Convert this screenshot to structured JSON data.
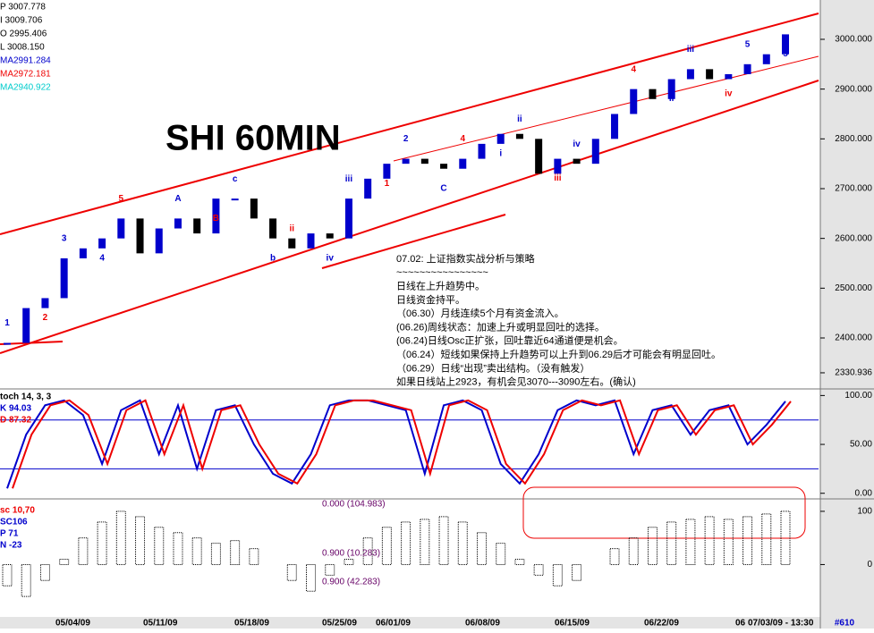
{
  "header": {
    "title": "SHI 60MIN",
    "legend": [
      "P 3007.778",
      "I 3009.706",
      "O 2995.406",
      "L 3008.150",
      "MA2991.284",
      "MA2972.181",
      "MA2940.922"
    ],
    "corner": "#610"
  },
  "price_panel": {
    "ylim": [
      2303,
      3079
    ],
    "yticks": [
      {
        "value": 3000,
        "label": "3000.000"
      },
      {
        "value": 2900,
        "label": "2900.000"
      },
      {
        "value": 2800,
        "label": "2800.000"
      },
      {
        "value": 2700,
        "label": "2700.000"
      },
      {
        "value": 2600,
        "label": "2600.000"
      },
      {
        "value": 2500,
        "label": "2500.000"
      },
      {
        "value": 2400,
        "label": "2400.000"
      },
      {
        "value": 2330,
        "label": "2330.936"
      }
    ],
    "closes": [
      2390,
      2460,
      2480,
      2560,
      2580,
      2600,
      2640,
      2570,
      2620,
      2640,
      2610,
      2680,
      2680,
      2640,
      2600,
      2580,
      2610,
      2600,
      2680,
      2720,
      2750,
      2760,
      2750,
      2740,
      2760,
      2790,
      2810,
      2800,
      2730,
      2760,
      2750,
      2800,
      2850,
      2900,
      2880,
      2920,
      2940,
      2920,
      2930,
      2950,
      2970,
      3010
    ],
    "waves": [
      "1",
      "2",
      "3",
      "4",
      "5",
      "3",
      "A",
      "B",
      "c",
      "b",
      "ii",
      "iv",
      "iii",
      "1",
      "2",
      "C",
      "4",
      "i",
      "ii",
      "iii",
      "iv",
      "3",
      "4",
      "ii",
      "iii",
      "iv",
      "5",
      "5"
    ]
  },
  "commentary": [
    "07.02: 上证指数实战分析与策略",
    "~~~~~~~~~~~~~~~~",
    "日线在上升趋势中。",
    "日线资金持平。",
    "（06.30）月线连续5个月有资金流入。",
    "(06.26)周线状态：加速上升或明显回吐的选择。",
    "(06.24)日线Osc正扩张，回吐靠近64通道便是机会。",
    "（06.24）短线如果保持上升趋势可以上升到06.29后才可能会有明显回吐。",
    "（06.29）日线“出现”卖出结构。（没有触发）",
    "如果日线站上2923，有机会见3070---3090左右。(确认)"
  ],
  "stoch_panel": {
    "ylim": [
      -3,
      104
    ],
    "yticks": [
      {
        "value": 100,
        "label": "100.00"
      },
      {
        "value": 50,
        "label": "50.00"
      },
      {
        "value": 0,
        "label": "0.00"
      }
    ],
    "legend": [
      "toch 14, 3, 3",
      "K  94.03",
      "D  87.32"
    ],
    "k": [
      5,
      60,
      90,
      95,
      80,
      30,
      85,
      95,
      40,
      90,
      25,
      85,
      90,
      50,
      20,
      10,
      40,
      90,
      95,
      95,
      90,
      85,
      20,
      90,
      95,
      85,
      30,
      10,
      40,
      85,
      95,
      90,
      95,
      40,
      85,
      90,
      60,
      85,
      90,
      50,
      70,
      94
    ]
  },
  "osc_panel": {
    "ylim": [
      -95,
      120
    ],
    "yticks": [
      100,
      0
    ],
    "legend": [
      "sc 10,70",
      "SC106",
      "P  71",
      "N  -23"
    ],
    "levels": [
      "0.000 (104.983)",
      "0.900 (10.283)",
      "0.900 (42.283)"
    ],
    "osc": [
      -40,
      -60,
      -30,
      10,
      50,
      80,
      100,
      90,
      70,
      60,
      50,
      40,
      45,
      30,
      0,
      -30,
      -50,
      -20,
      10,
      50,
      70,
      80,
      85,
      90,
      80,
      60,
      40,
      10,
      -20,
      -40,
      -30,
      0,
      30,
      50,
      70,
      80,
      85,
      90,
      85,
      90,
      95,
      100
    ]
  },
  "dates": [
    "05/04/09",
    "05/11/09",
    "05/18/09",
    "05/25/09",
    "06/01/09",
    "06/08/09",
    "06/15/09",
    "06/22/09",
    "06",
    "07/03/09 - 13:30"
  ]
}
